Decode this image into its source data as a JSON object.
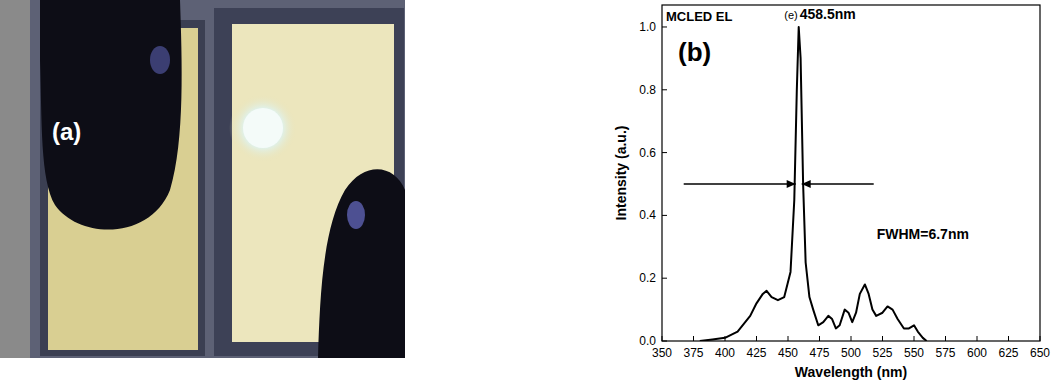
{
  "photo_panel": {
    "label": "(a)"
  },
  "chart_data": {
    "type": "line",
    "title": "MCLED EL",
    "panel_label": "(b)",
    "x_label": "Wavelength (nm)",
    "y_label": "Intensity (a.u.)",
    "annotations": [
      "(e)",
      "458.5nm",
      "FWHM=6.7nm"
    ],
    "color": "#000000",
    "x": [
      380,
      390,
      400,
      410,
      420,
      425,
      430,
      433,
      437,
      442,
      447,
      452,
      455,
      457,
      458.5,
      460,
      462,
      464,
      467,
      470,
      474,
      478,
      482,
      485,
      488,
      491,
      495,
      498,
      501,
      504,
      507,
      511,
      514,
      517,
      520,
      525,
      529,
      533,
      537,
      542,
      546,
      550,
      553,
      557,
      560
    ],
    "values": [
      0,
      0.005,
      0.01,
      0.03,
      0.08,
      0.12,
      0.15,
      0.16,
      0.14,
      0.13,
      0.14,
      0.22,
      0.45,
      0.8,
      1.0,
      0.9,
      0.5,
      0.25,
      0.14,
      0.1,
      0.05,
      0.06,
      0.08,
      0.07,
      0.04,
      0.05,
      0.1,
      0.09,
      0.06,
      0.09,
      0.15,
      0.18,
      0.15,
      0.1,
      0.08,
      0.09,
      0.11,
      0.1,
      0.07,
      0.04,
      0.04,
      0.05,
      0.03,
      0.01,
      0
    ],
    "xlim": [
      350,
      650
    ],
    "xticks": [
      350,
      375,
      400,
      425,
      450,
      475,
      500,
      525,
      550,
      575,
      600,
      625,
      650
    ],
    "ylim": [
      0,
      1.07
    ],
    "yticks": [
      {
        "value": 0,
        "label": "0.0"
      },
      {
        "value": 0.2,
        "label": "0.2"
      },
      {
        "value": 0.4,
        "label": "0.4"
      },
      {
        "value": 0.6,
        "label": "0.6"
      },
      {
        "value": 0.8,
        "label": "0.8"
      },
      {
        "value": 1.0,
        "label": "1.0"
      }
    ],
    "grid": false
  }
}
